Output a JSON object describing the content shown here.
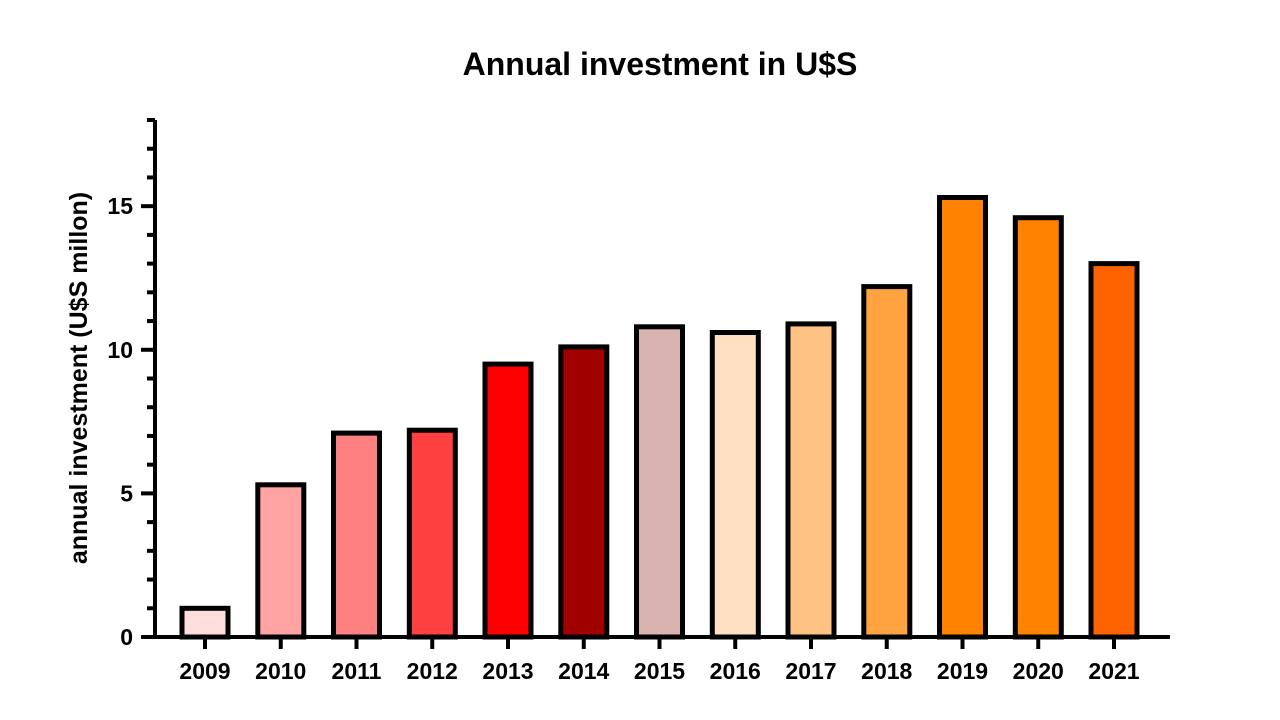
{
  "chart_data": {
    "type": "bar",
    "title": "Annual investment in U$S",
    "xlabel": "",
    "ylabel": "annual investment (U$S millon)",
    "ylim": [
      0,
      18
    ],
    "yticks": [
      0,
      5,
      10,
      15
    ],
    "minor_tick_step": 1,
    "grid": false,
    "legend": "none",
    "categories": [
      "2009",
      "2010",
      "2011",
      "2012",
      "2013",
      "2014",
      "2015",
      "2016",
      "2017",
      "2018",
      "2019",
      "2020",
      "2021"
    ],
    "values": [
      1.0,
      5.3,
      7.1,
      7.2,
      9.5,
      10.1,
      10.8,
      10.6,
      10.9,
      12.2,
      15.3,
      14.6,
      13.0
    ],
    "colors": [
      "#FFDDDD",
      "#FFA3A3",
      "#FF8080",
      "#FF4040",
      "#FF0000",
      "#A00000",
      "#D9B3B0",
      "#FFE0C2",
      "#FFC285",
      "#FFA340",
      "#FF8300",
      "#FF8300",
      "#FF6300"
    ]
  }
}
